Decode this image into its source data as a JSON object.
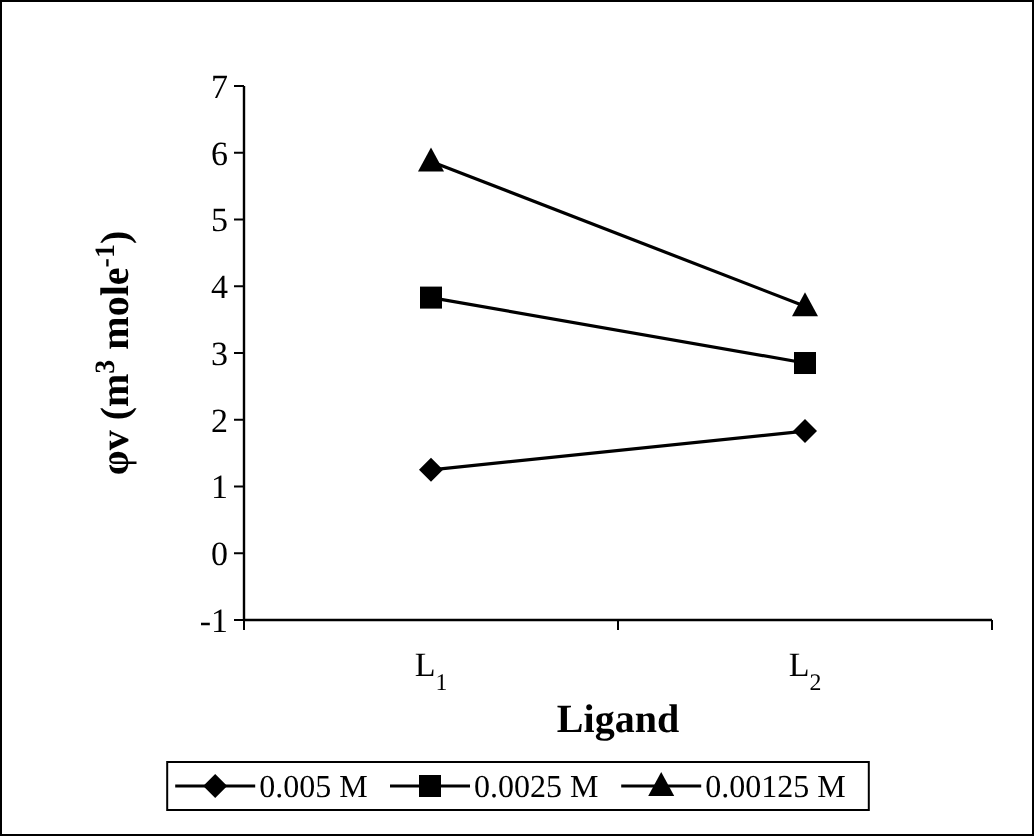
{
  "chart_data": {
    "type": "line",
    "xlabel": "Ligand",
    "ylabel": "φv (m$^{3}$ mole$^{-1}$)",
    "categories": [
      "L$_{1}$",
      "L$_{2}$"
    ],
    "series": [
      {
        "name": "0.005 M",
        "color": "#000000",
        "values": [
          1.25,
          1.83
        ],
        "marker": "diamond"
      },
      {
        "name": "0.0025 M",
        "color": "#000000",
        "values": [
          3.83,
          2.85
        ],
        "marker": "square"
      },
      {
        "name": "0.00125 M",
        "color": "#000000",
        "values": [
          5.87,
          3.7
        ],
        "marker": "triangle"
      }
    ],
    "ylim": [
      -1,
      7
    ],
    "yticks": [
      -1,
      0,
      1,
      2,
      3,
      4,
      5,
      6,
      7
    ],
    "grid": false,
    "legend": "bottom",
    "line_style": "solid"
  }
}
